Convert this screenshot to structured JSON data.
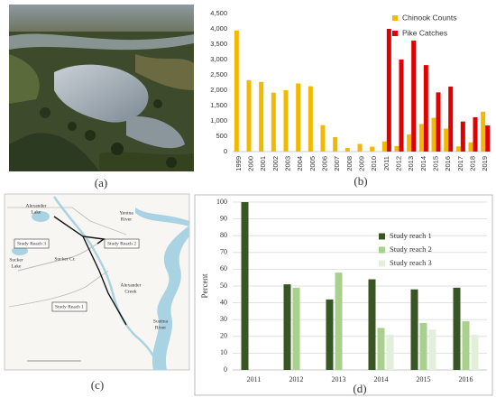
{
  "panel_labels": [
    "(a)",
    "(b)",
    "(c)",
    "(d)"
  ],
  "map": {
    "labels": [
      [
        "Alexander",
        "Lake"
      ],
      [
        "Yentna",
        "River"
      ],
      [
        "Study Reach 3"
      ],
      [
        "Study Reach 2"
      ],
      [
        "Sucker",
        "Lake"
      ],
      [
        "Sucker Cr."
      ],
      [
        "Alexander",
        "Creek"
      ],
      [
        "Study Reach 1"
      ],
      [
        "Susitna",
        "River"
      ]
    ]
  },
  "chart_data": [
    {
      "type": "bar",
      "categories": [
        "1999",
        "2000",
        "2001",
        "2002",
        "2003",
        "2004",
        "2005",
        "2006",
        "2007",
        "2008",
        "2009",
        "2010",
        "2011",
        "2012",
        "2013",
        "2014",
        "2015",
        "2016",
        "2017",
        "2018",
        "2019"
      ],
      "series": [
        {
          "name": "Chinook Counts",
          "color": "#f5b800",
          "values": [
            3950,
            2330,
            2270,
            1920,
            2000,
            2220,
            2130,
            860,
            470,
            120,
            250,
            160,
            330,
            180,
            560,
            900,
            1100,
            750,
            170,
            300,
            1300
          ]
        },
        {
          "name": "Pike Catches",
          "color": "#e00000",
          "values": [
            null,
            null,
            null,
            null,
            null,
            null,
            null,
            null,
            null,
            null,
            null,
            null,
            4000,
            3000,
            3620,
            2820,
            1930,
            2120,
            980,
            1120,
            850
          ]
        }
      ],
      "ylim": [
        0,
        4500
      ],
      "yticks": [
        0,
        500,
        {
          "value": 1000,
          "label": "1,000"
        },
        {
          "value": 1500,
          "label": "1,500"
        },
        {
          "value": 2000,
          "label": "2,000"
        },
        {
          "value": 2500,
          "label": "2,500"
        },
        {
          "value": 3000,
          "label": "3,000"
        },
        {
          "value": 3500,
          "label": "3,500"
        },
        {
          "value": 4000,
          "label": "4,000"
        },
        {
          "value": 4500,
          "label": "4,500"
        }
      ],
      "grid": false,
      "legend": "upper right"
    },
    {
      "type": "bar",
      "y_label": "Percent",
      "categories": [
        "2011",
        "2012",
        "2013",
        "2014",
        "2015",
        "2016"
      ],
      "series": [
        {
          "name": "Study reach 1",
          "color": "#375623",
          "values": [
            100,
            51,
            42,
            54,
            48,
            49
          ]
        },
        {
          "name": "Study reach 2",
          "color": "#a9d18e",
          "values": [
            null,
            49,
            58,
            25,
            28,
            29
          ]
        },
        {
          "name": "Study reach 3",
          "color": "#e2efda",
          "values": [
            null,
            null,
            null,
            21,
            24,
            21
          ]
        }
      ],
      "ylim": [
        0,
        100
      ],
      "yticks": [
        0,
        10,
        20,
        30,
        40,
        50,
        60,
        70,
        80,
        90,
        100
      ],
      "grid": true,
      "legend": "upper right"
    }
  ]
}
